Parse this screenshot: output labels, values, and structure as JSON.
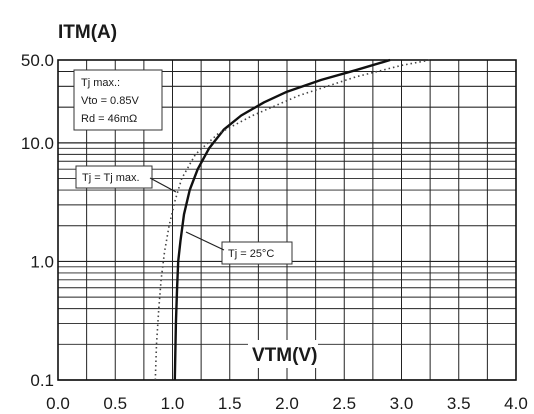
{
  "chart_data": {
    "type": "line",
    "title": "",
    "ylabel": "ITM(A)",
    "xlabel": "VTM(V)",
    "xlim": [
      0,
      4
    ],
    "ylim": [
      0.1,
      50
    ],
    "yscale": "log",
    "grid": true,
    "x_ticks": [
      0,
      0.5,
      1,
      1.5,
      2,
      2.5,
      3,
      3.5,
      4
    ],
    "x_tick_labels": [
      "0.0",
      "0.5",
      "1.0",
      "1.5",
      "2.0",
      "2.5",
      "3.0",
      "3.5",
      "4.0"
    ],
    "y_ticks": [
      0.1,
      1,
      10,
      50
    ],
    "y_tick_labels": [
      "0.1",
      "1.0",
      "10.0",
      "50.0"
    ],
    "params_box": [
      "Tj max.:",
      "Vto = 0.85V",
      "Rd = 46mΩ"
    ],
    "series": [
      {
        "name": "Tj = 25°C",
        "style": "solid",
        "x": [
          1.02,
          1.03,
          1.04,
          1.05,
          1.07,
          1.1,
          1.15,
          1.22,
          1.32,
          1.45,
          1.6,
          1.8,
          2.0,
          2.3,
          2.6,
          2.9
        ],
        "y": [
          0.1,
          0.3,
          0.6,
          1.0,
          1.5,
          2.5,
          4.0,
          6.0,
          9.0,
          13.0,
          17.0,
          22.0,
          27.0,
          34.0,
          41.0,
          50.0
        ]
      },
      {
        "name": "Tj = Tj max.",
        "style": "dotted",
        "x": [
          0.85,
          0.86,
          0.88,
          0.9,
          0.93,
          0.97,
          1.02,
          1.08,
          1.2,
          1.4,
          1.7,
          2.1,
          2.6,
          3.0,
          3.25
        ],
        "y": [
          0.1,
          0.2,
          0.4,
          0.7,
          1.2,
          2.0,
          3.2,
          5.0,
          8.0,
          12.0,
          17.0,
          25.0,
          36.0,
          45.0,
          50.0
        ]
      }
    ]
  }
}
